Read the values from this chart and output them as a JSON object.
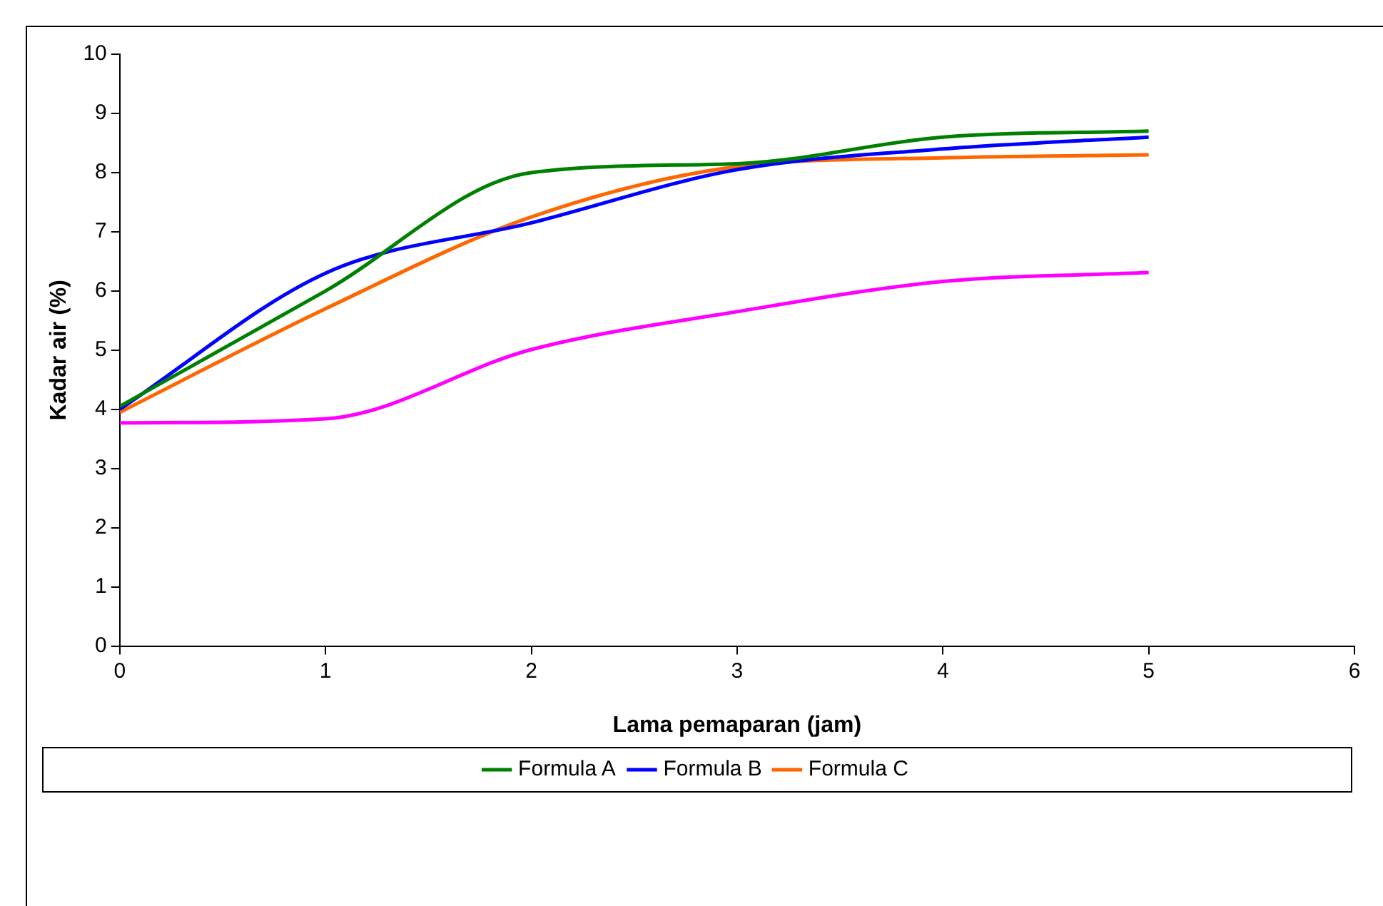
{
  "chart_data": {
    "type": "line",
    "xlabel": "Lama pemaparan (jam)",
    "ylabel": "Kadar air (%)",
    "x": [
      0,
      1,
      2,
      3,
      4,
      5
    ],
    "series": [
      {
        "color": "#ff00ff",
        "values": [
          3.77,
          3.84,
          5.01,
          5.65,
          6.16,
          6.31
        ]
      },
      {
        "name": "Formula A",
        "color": "#008000",
        "values": [
          4.05,
          6.0,
          8.0,
          8.15,
          8.6,
          8.7
        ]
      },
      {
        "name": "Formula B",
        "color": "#0000ff",
        "values": [
          4.0,
          6.3,
          7.15,
          8.05,
          8.4,
          8.6
        ]
      },
      {
        "name": "Formula C",
        "color": "#ff6600",
        "values": [
          3.95,
          5.7,
          7.25,
          8.1,
          8.25,
          8.3
        ]
      }
    ],
    "xlim": [
      0,
      6
    ],
    "xticks": [
      0,
      1,
      2,
      3,
      4,
      5,
      6
    ],
    "ylim": [
      0,
      10
    ],
    "yticks": [
      0,
      1,
      2,
      3,
      4,
      5,
      6,
      7,
      8,
      9,
      10
    ],
    "grid": false,
    "legend": "bottom",
    "line_style": "solid"
  }
}
